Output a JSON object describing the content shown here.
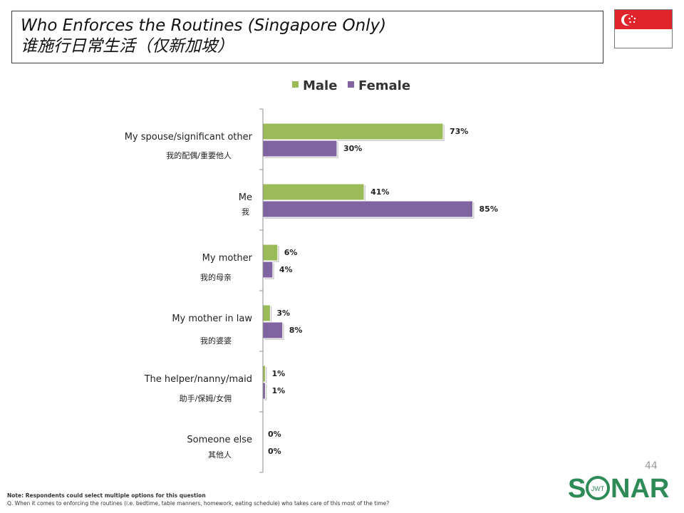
{
  "header": {
    "title_en": "Who Enforces the Routines (Singapore Only)",
    "title_cn": "谁施行日常生活（仅新加坡）"
  },
  "flag": {
    "icon": "singapore-flag-icon",
    "red": "#e0242b",
    "white": "#ffffff"
  },
  "chart_data": {
    "type": "bar",
    "orientation": "horizontal",
    "title": "",
    "xlabel": "",
    "ylabel": "",
    "xlim": [
      0,
      100
    ],
    "legend_position": "top",
    "grid": false,
    "categories": [
      {
        "en": "My spouse/significant other",
        "cn": "我的配偶/重要他人"
      },
      {
        "en": "Me",
        "cn": "我"
      },
      {
        "en": "My mother",
        "cn": "我的母亲"
      },
      {
        "en": "My mother in law",
        "cn": "我的婆婆"
      },
      {
        "en": "The helper/nanny/maid",
        "cn": "助手/保姆/女佣"
      },
      {
        "en": "Someone else",
        "cn": "其他人"
      }
    ],
    "series": [
      {
        "name": "Male",
        "color": "#9bbb59",
        "values": [
          73,
          41,
          6,
          3,
          1,
          0
        ],
        "labels": [
          "73%",
          "41%",
          "6%",
          "3%",
          "1%",
          "0%"
        ]
      },
      {
        "name": "Female",
        "color": "#8064a2",
        "values": [
          30,
          85,
          4,
          8,
          1,
          0
        ],
        "labels": [
          "30%",
          "85%",
          "4%",
          "8%",
          "1%",
          "0%"
        ]
      }
    ]
  },
  "footer": {
    "page_number": "44",
    "note_label": "Note: Respondents could select multiple options for this question",
    "question": "Q. When it comes to enforcing the routines (i.e. bedtime, table manners, homework, eating schedule) who takes care of this most of the time?"
  },
  "logo": {
    "text_s": "S",
    "text_jwt": "JWT",
    "text_nar": "NAR",
    "color": "#2e8b57",
    "icon": "sonar-logo-icon"
  }
}
